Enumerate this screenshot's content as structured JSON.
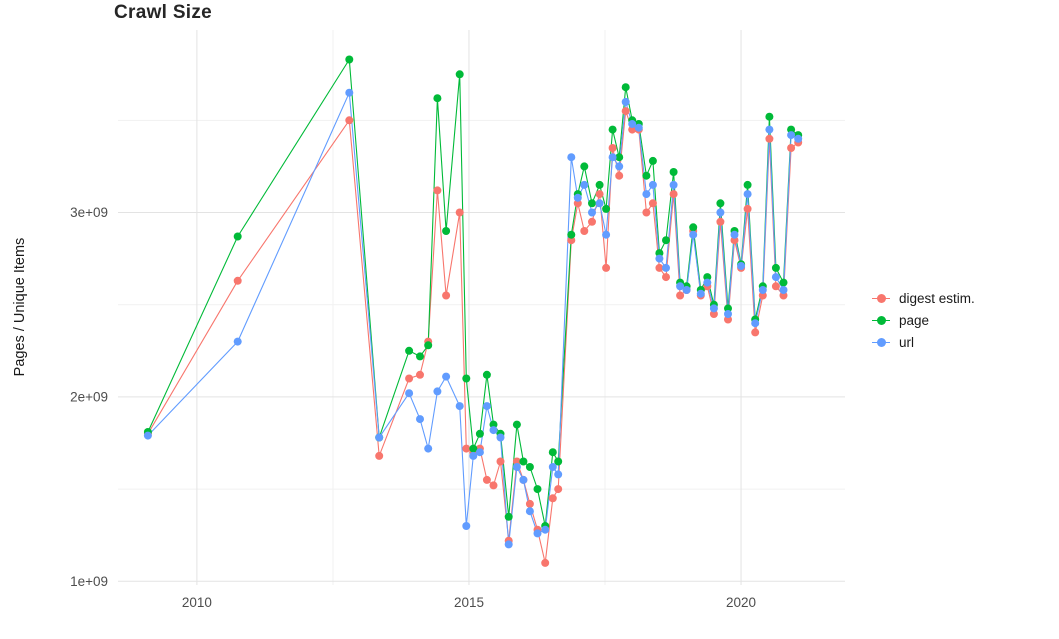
{
  "page": {
    "background": "#ffffff"
  },
  "style": {
    "grid_major": "#e3e3e3",
    "grid_minor": "#f1f1f1",
    "tick_label_color": "#4d4d4d",
    "title_color": "#262626"
  },
  "chart_data": {
    "type": "line",
    "title": "Crawl Size",
    "xlabel": "",
    "ylabel": "Pages / Unique Items",
    "legend_position": "right",
    "grid": true,
    "y_unit": "1e+09",
    "axis": {
      "xlim": [
        2008.55,
        2021.91
      ],
      "ylim_e9": [
        0.98,
        3.99
      ],
      "x_ticks": [
        {
          "value": 2010,
          "label": "2010"
        },
        {
          "value": 2015,
          "label": "2015"
        },
        {
          "value": 2020,
          "label": "2020"
        }
      ],
      "x_minor": [
        2012.5,
        2017.5
      ],
      "y_ticks": [
        {
          "value": 1,
          "label": "1e+09"
        },
        {
          "value": 2,
          "label": "2e+09"
        },
        {
          "value": 3,
          "label": "3e+09"
        }
      ],
      "y_minor": [
        1.5,
        2.5,
        3.5
      ]
    },
    "x": [
      2009.1,
      2010.75,
      2012.8,
      2013.35,
      2013.9,
      2014.1,
      2014.25,
      2014.42,
      2014.58,
      2014.83,
      2014.95,
      2015.08,
      2015.2,
      2015.33,
      2015.45,
      2015.58,
      2015.73,
      2015.88,
      2016.0,
      2016.12,
      2016.26,
      2016.4,
      2016.54,
      2016.64,
      2016.88,
      2017.0,
      2017.12,
      2017.26,
      2017.4,
      2017.52,
      2017.64,
      2017.76,
      2017.88,
      2018.0,
      2018.12,
      2018.26,
      2018.38,
      2018.5,
      2018.62,
      2018.76,
      2018.88,
      2019.0,
      2019.12,
      2019.26,
      2019.38,
      2019.5,
      2019.62,
      2019.76,
      2019.88,
      2020.0,
      2020.12,
      2020.26,
      2020.4,
      2020.52,
      2020.64,
      2020.78,
      2020.92,
      2021.05
    ],
    "series": [
      {
        "name": "digest estim.",
        "color": "#F8766D",
        "values": [
          1.8,
          2.63,
          3.5,
          1.68,
          2.1,
          2.12,
          2.3,
          3.12,
          2.55,
          3.0,
          1.72,
          1.7,
          1.72,
          1.55,
          1.52,
          1.65,
          1.22,
          1.65,
          1.55,
          1.42,
          1.28,
          1.1,
          1.45,
          1.5,
          2.85,
          3.05,
          2.9,
          2.95,
          3.1,
          2.7,
          3.35,
          3.2,
          3.55,
          3.45,
          3.45,
          3.0,
          3.05,
          2.7,
          2.65,
          3.1,
          2.55,
          2.58,
          2.9,
          2.55,
          2.6,
          2.45,
          2.95,
          2.42,
          2.85,
          2.7,
          3.02,
          2.35,
          2.55,
          3.4,
          2.6,
          2.55,
          3.35,
          3.38
        ]
      },
      {
        "name": "page",
        "color": "#00BA38",
        "values": [
          1.81,
          2.87,
          3.83,
          1.78,
          2.25,
          2.22,
          2.28,
          3.62,
          2.9,
          3.75,
          2.1,
          1.72,
          1.8,
          2.12,
          1.85,
          1.8,
          1.35,
          1.85,
          1.65,
          1.62,
          1.5,
          1.3,
          1.7,
          1.65,
          2.88,
          3.1,
          3.25,
          3.05,
          3.15,
          3.02,
          3.45,
          3.3,
          3.68,
          3.5,
          3.48,
          3.2,
          3.28,
          2.78,
          2.85,
          3.22,
          2.62,
          2.6,
          2.92,
          2.58,
          2.65,
          2.5,
          3.05,
          2.48,
          2.9,
          2.72,
          3.15,
          2.42,
          2.6,
          3.52,
          2.7,
          2.62,
          3.45,
          3.42
        ]
      },
      {
        "name": "url",
        "color": "#619CFF",
        "values": [
          1.79,
          2.3,
          3.65,
          1.78,
          2.02,
          1.88,
          1.72,
          2.03,
          2.11,
          1.95,
          1.3,
          1.68,
          1.7,
          1.95,
          1.82,
          1.78,
          1.2,
          1.62,
          1.55,
          1.38,
          1.26,
          1.28,
          1.62,
          1.58,
          3.3,
          3.08,
          3.15,
          3.0,
          3.05,
          2.88,
          3.3,
          3.25,
          3.6,
          3.48,
          3.46,
          3.1,
          3.15,
          2.75,
          2.7,
          3.15,
          2.6,
          2.58,
          2.88,
          2.56,
          2.62,
          2.48,
          3.0,
          2.45,
          2.88,
          2.71,
          3.1,
          2.4,
          2.58,
          3.45,
          2.65,
          2.58,
          3.42,
          3.4
        ]
      }
    ]
  }
}
